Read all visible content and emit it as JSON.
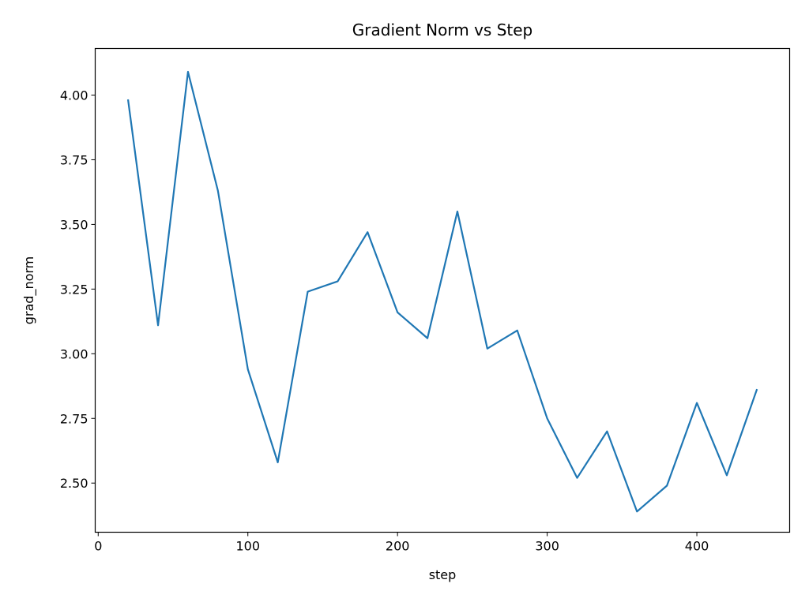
{
  "chart_data": {
    "type": "line",
    "title": "Gradient Norm vs Step",
    "xlabel": "step",
    "ylabel": "grad_norm",
    "xlim": [
      -2,
      462
    ],
    "ylim": [
      2.31,
      4.18
    ],
    "xticks": [
      0,
      100,
      200,
      300,
      400
    ],
    "yticks": [
      2.5,
      2.75,
      3.0,
      3.25,
      3.5,
      3.75,
      4.0
    ],
    "xtick_labels": [
      "0",
      "100",
      "200",
      "300",
      "400"
    ],
    "ytick_labels": [
      "2.50",
      "2.75",
      "3.00",
      "3.25",
      "3.50",
      "3.75",
      "4.00"
    ],
    "grid": false,
    "series": [
      {
        "color": "#1f77b4",
        "x": [
          20,
          40,
          60,
          80,
          100,
          120,
          140,
          160,
          180,
          200,
          220,
          240,
          260,
          280,
          300,
          320,
          340,
          360,
          380,
          400,
          420,
          440
        ],
        "y": [
          3.98,
          3.11,
          4.09,
          3.63,
          2.94,
          2.58,
          3.24,
          3.28,
          3.47,
          3.16,
          3.06,
          3.55,
          3.02,
          3.09,
          2.75,
          2.52,
          2.7,
          2.39,
          2.49,
          2.81,
          2.53,
          2.86
        ]
      }
    ]
  }
}
